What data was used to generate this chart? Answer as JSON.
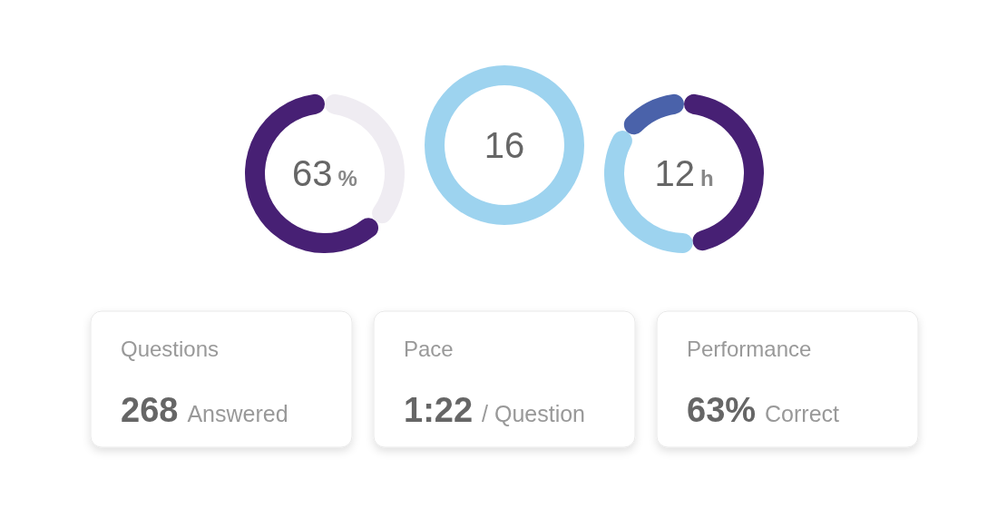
{
  "chart_data": [
    {
      "type": "donut",
      "categories": [
        null,
        null
      ],
      "values": [
        37,
        63
      ],
      "colors": [
        "#efecf2",
        "#472074"
      ],
      "annotations": [
        "63",
        "%"
      ]
    },
    {
      "type": "donut",
      "categories": [
        null
      ],
      "values": [
        100
      ],
      "colors": [
        "#9dd3ef"
      ],
      "annotations": [
        "16"
      ]
    },
    {
      "type": "donut",
      "categories": [
        null,
        null,
        null
      ],
      "values": [
        48,
        37,
        15
      ],
      "colors": [
        "#472074",
        "#9dd3ef",
        "#4a62aa"
      ],
      "annotations": [
        "12",
        "h"
      ]
    },
    {
      "type": "other",
      "annotations": [
        "Questions",
        "268",
        "Answered",
        "Pace",
        "1:22",
        "/ Question",
        "Performance",
        "63%",
        "Correct"
      ]
    }
  ]
}
